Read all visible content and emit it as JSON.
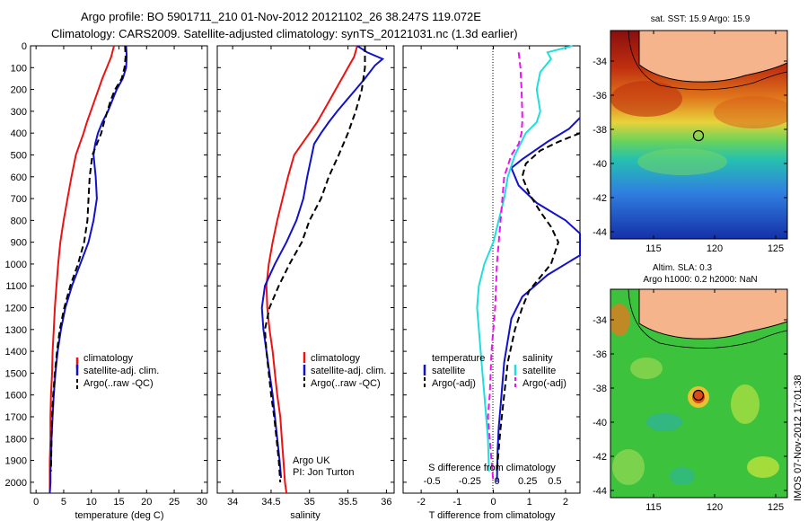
{
  "header": {
    "title_line1": "Argo profile: BO 5901711_210 01-Nov-2012 20121102_26 38.247S 119.072E",
    "title_line2": "Climatology: CARS2009. Satellite-adjusted climatology: synTS_20121031.nc (1.3d earlier)"
  },
  "watermark": "IMOS 07-Nov-2012 17:01:38",
  "colors": {
    "climatology": "#ee1111",
    "satellite": "#1111cc",
    "argo": "#000000",
    "sal_satellite": "#22dddd",
    "sal_argo": "#ee11ee",
    "land": "#f6b48c"
  },
  "chart_data": [
    {
      "type": "line",
      "xlabel": "temperature (deg C)",
      "xlim": [
        -1,
        31
      ],
      "xticks": [
        0,
        5,
        10,
        15,
        20,
        25,
        30
      ],
      "ylim": [
        0,
        2050
      ],
      "yticks": [
        0,
        100,
        200,
        300,
        400,
        500,
        600,
        700,
        800,
        900,
        1000,
        1100,
        1200,
        1300,
        1400,
        1500,
        1600,
        1700,
        1800,
        1900,
        2000
      ],
      "legend": [
        "climatology",
        "satellite-adj. clim.",
        "Argo(..raw -QC)"
      ],
      "series": [
        {
          "name": "climatology",
          "color": "#ee1111",
          "dash": "",
          "x": [
            14.1,
            13.6,
            12.8,
            12.0,
            11.3,
            10.6,
            9.9,
            9.2,
            8.6,
            7.9,
            7.2,
            6.4,
            5.7,
            5.0,
            4.4,
            4.0,
            3.7,
            3.4,
            3.2,
            3.0,
            2.9,
            2.7,
            2.6,
            2.6,
            2.5,
            2.5,
            2.5
          ],
          "y": [
            0,
            50,
            100,
            150,
            200,
            250,
            300,
            350,
            400,
            450,
            500,
            600,
            700,
            800,
            900,
            1000,
            1100,
            1200,
            1300,
            1400,
            1500,
            1600,
            1700,
            1800,
            1900,
            2000,
            2050
          ]
        },
        {
          "name": "satellite-adj. clim.",
          "color": "#1111cc",
          "dash": "",
          "x": [
            16.3,
            16.4,
            16.3,
            15.7,
            14.6,
            13.8,
            13.0,
            12.0,
            11.2,
            10.7,
            10.4,
            10.8,
            11.0,
            10.4,
            9.5,
            8.0,
            6.5,
            5.3,
            4.5,
            3.9,
            3.5,
            3.2,
            3.0,
            2.8,
            2.7,
            2.6,
            2.6,
            2.5
          ],
          "y": [
            0,
            50,
            100,
            150,
            200,
            250,
            300,
            350,
            400,
            450,
            500,
            600,
            700,
            800,
            900,
            1000,
            1100,
            1200,
            1300,
            1400,
            1500,
            1600,
            1700,
            1800,
            1900,
            1950,
            2000,
            2050
          ]
        },
        {
          "name": "Argo(..raw -QC)",
          "color": "#000000",
          "dash": "7,4",
          "x": [
            16.1,
            16.2,
            16.0,
            15.5,
            14.3,
            13.5,
            12.9,
            12.3,
            11.8,
            11.0,
            10.2,
            9.7,
            9.5,
            9.3,
            8.7,
            7.6,
            6.2,
            5.1,
            4.3,
            3.8,
            3.4,
            3.1,
            2.9,
            2.8,
            2.7
          ],
          "y": [
            0,
            50,
            100,
            150,
            200,
            250,
            300,
            350,
            400,
            450,
            500,
            600,
            700,
            800,
            900,
            1000,
            1100,
            1200,
            1300,
            1400,
            1500,
            1600,
            1700,
            1800,
            1950
          ]
        }
      ]
    },
    {
      "type": "line",
      "xlabel": "salinity",
      "xlim": [
        33.8,
        36.1
      ],
      "xticks": [
        34,
        34.5,
        35,
        35.5,
        36
      ],
      "xtick_labels": [
        "34",
        "34.5",
        "35",
        "35.5",
        "36"
      ],
      "ylim": [
        0,
        2050
      ],
      "legend": [
        "climatology",
        "satellite-adj. clim.",
        "Argo(..raw -QC)"
      ],
      "annotation": [
        "Argo UK",
        "PI: Jon Turton"
      ],
      "series": [
        {
          "name": "climatology",
          "color": "#ee1111",
          "dash": "",
          "x": [
            35.62,
            35.58,
            35.5,
            35.42,
            35.34,
            35.26,
            35.18,
            35.1,
            35.0,
            34.9,
            34.8,
            34.72,
            34.65,
            34.58,
            34.52,
            34.47,
            34.44,
            34.45,
            34.48,
            34.52,
            34.55,
            34.58,
            34.62,
            34.64,
            34.66,
            34.68,
            34.7
          ],
          "y": [
            0,
            50,
            100,
            150,
            200,
            250,
            300,
            350,
            400,
            450,
            500,
            600,
            700,
            800,
            900,
            1000,
            1100,
            1200,
            1300,
            1400,
            1500,
            1600,
            1700,
            1800,
            1900,
            2000,
            2050
          ]
        },
        {
          "name": "satellite-adj. clim.",
          "color": "#1111cc",
          "dash": "",
          "x": [
            35.62,
            35.75,
            35.95,
            35.85,
            35.72,
            35.6,
            35.48,
            35.36,
            35.25,
            35.15,
            35.06,
            34.97,
            34.92,
            34.83,
            34.7,
            34.55,
            34.42,
            34.38,
            34.4,
            34.44,
            34.48,
            34.52,
            34.55,
            34.58,
            34.61,
            34.63
          ],
          "y": [
            0,
            30,
            60,
            90,
            150,
            200,
            250,
            300,
            350,
            400,
            450,
            600,
            700,
            800,
            900,
            1000,
            1100,
            1200,
            1300,
            1400,
            1500,
            1600,
            1700,
            1800,
            1900,
            1980
          ]
        },
        {
          "name": "Argo(..raw -QC)",
          "color": "#000000",
          "dash": "7,4",
          "x": [
            35.72,
            35.72,
            35.68,
            35.6,
            35.5,
            35.38,
            35.25,
            35.15,
            35.0,
            34.9,
            34.74,
            34.6,
            34.48,
            34.42,
            34.44,
            34.47,
            34.5,
            34.54,
            34.57,
            34.6,
            34.62
          ],
          "y": [
            0,
            100,
            200,
            300,
            400,
            500,
            600,
            700,
            800,
            900,
            1000,
            1100,
            1200,
            1300,
            1400,
            1500,
            1600,
            1700,
            1800,
            1900,
            2000
          ]
        }
      ]
    },
    {
      "type": "line",
      "xlabel": "T difference from climatology",
      "xlabel_top": "S difference from climatology",
      "xlim": [
        -2.5,
        2.4
      ],
      "xticks": [
        -2,
        -1,
        0,
        1,
        2
      ],
      "top_ticks": [
        "-0.5",
        "-0.25",
        "0",
        "0.25",
        "0.5"
      ],
      "top_tick_positions": [
        -1.7,
        -0.65,
        0.1,
        0.95,
        1.7
      ],
      "ylim": [
        0,
        2050
      ],
      "legend": {
        "temperature_title": "temperature",
        "salinity_title": "salinity",
        "entries": [
          "satellite",
          "Argo(-adj)",
          "satellite",
          "Argo(-adj)"
        ]
      },
      "series": [
        {
          "name": "satellite",
          "group": "temperature",
          "color": "#1111cc",
          "dash": "",
          "x": [
            2.4,
            2.1,
            1.5,
            0.8,
            0.5,
            0.7,
            1.2,
            2.0,
            2.4,
            2.4,
            1.5,
            0.8,
            0.5,
            0.4,
            0.3,
            0.25,
            0.2,
            0.15,
            0.12,
            0.1
          ],
          "y": [
            330,
            380,
            440,
            520,
            560,
            640,
            720,
            800,
            860,
            960,
            1050,
            1150,
            1250,
            1350,
            1450,
            1550,
            1650,
            1750,
            1850,
            2000
          ]
        },
        {
          "name": "Argo(-adj)",
          "group": "temperature",
          "color": "#000000",
          "dash": "7,4",
          "x": [
            2.4,
            1.8,
            1.3,
            0.9,
            0.8,
            1.0,
            1.3,
            1.6,
            1.8,
            1.6,
            1.3,
            1.0,
            0.8,
            0.6,
            0.4,
            0.3,
            0.2,
            0.15,
            0.1
          ],
          "y": [
            400,
            440,
            480,
            540,
            600,
            680,
            760,
            830,
            900,
            1000,
            1060,
            1120,
            1200,
            1300,
            1450,
            1600,
            1750,
            1850,
            1950
          ]
        },
        {
          "name": "satellite",
          "group": "salinity",
          "color": "#22dddd",
          "dash": "",
          "x": [
            2.2,
            1.5,
            1.6,
            1.3,
            1.2,
            1.3,
            1.2,
            0.9,
            0.6,
            0.4,
            0.3,
            0.15,
            0.0,
            -0.25,
            -0.4,
            -0.45,
            -0.4,
            -0.35,
            -0.3,
            -0.25,
            -0.2,
            -0.15,
            -0.12
          ],
          "y": [
            0,
            30,
            60,
            120,
            200,
            300,
            350,
            400,
            500,
            600,
            700,
            800,
            900,
            1000,
            1100,
            1200,
            1300,
            1400,
            1500,
            1600,
            1700,
            1800,
            1950
          ]
        },
        {
          "name": "Argo(-adj)",
          "group": "salinity",
          "color": "#ee11ee",
          "dash": "7,4",
          "x": [
            0.7,
            0.75,
            0.78,
            0.8,
            0.8,
            0.78,
            0.7,
            0.5,
            0.3,
            0.2,
            0.1,
            0.05,
            -0.05,
            -0.1,
            -0.15,
            -0.1,
            -0.05,
            0.0
          ],
          "y": [
            30,
            100,
            200,
            300,
            350,
            400,
            450,
            500,
            600,
            800,
            1000,
            1200,
            1400,
            1600,
            1700,
            1800,
            1900,
            2000
          ]
        }
      ]
    }
  ],
  "maps": [
    {
      "title": "sat. SST: 15.9 Argo: 15.9",
      "lat_ticks": [
        "-34",
        "-36",
        "-38",
        "-40",
        "-42",
        "-44"
      ],
      "lon_ticks": [
        "115",
        "120",
        "125"
      ]
    },
    {
      "title_line1": "Altim. SLA: 0.3",
      "title_line2": "Argo h1000: 0.2 h2000: NaN",
      "lat_ticks": [
        "-34",
        "-36",
        "-38",
        "-40",
        "-42",
        "-44"
      ],
      "lon_ticks": [
        "115",
        "120",
        "125"
      ]
    }
  ]
}
